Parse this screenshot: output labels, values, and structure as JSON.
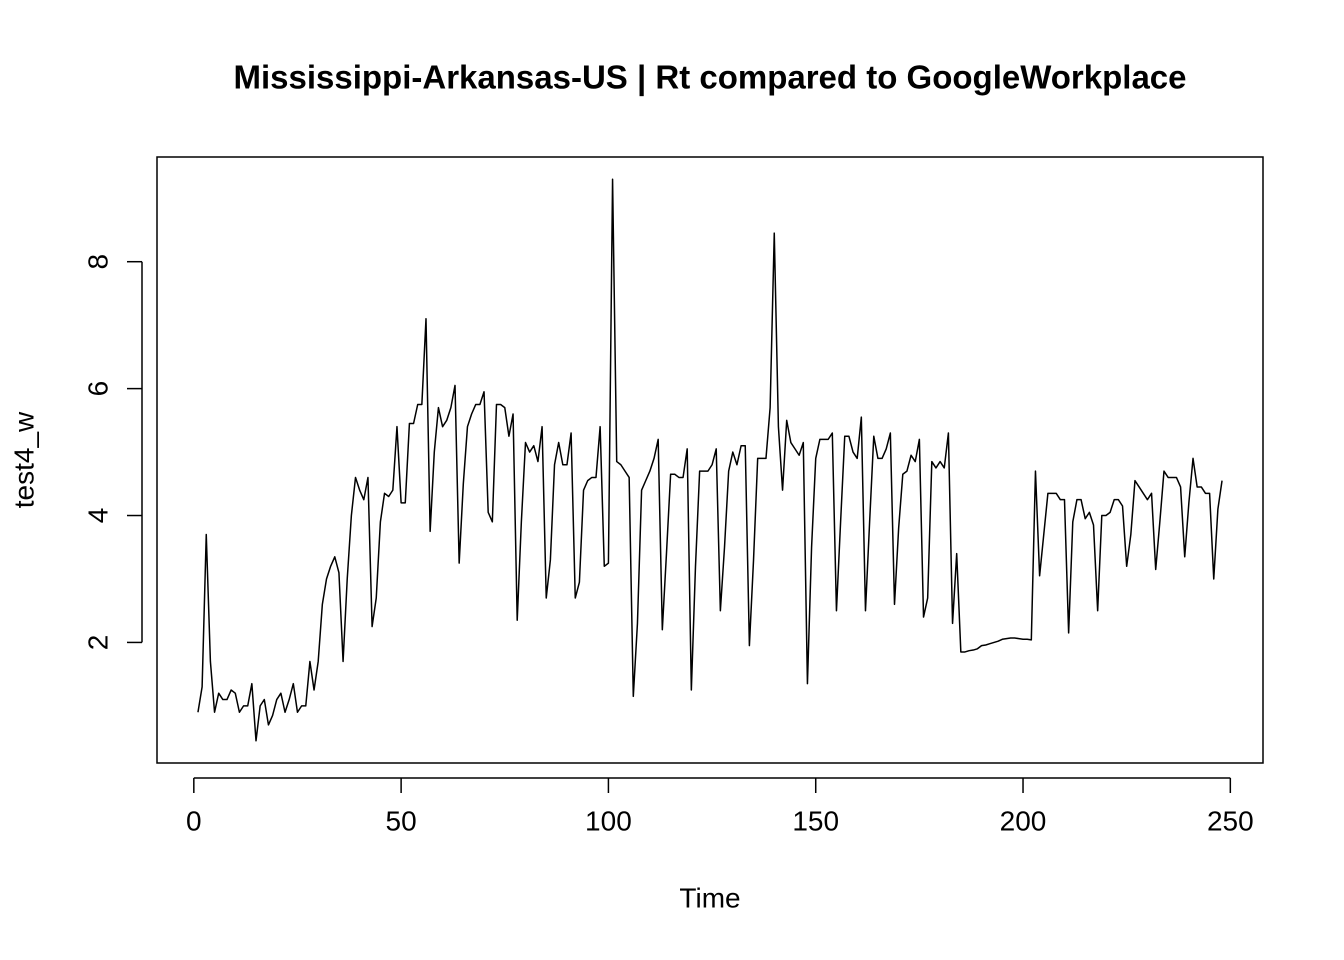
{
  "chart_data": {
    "type": "line",
    "title": "Mississippi-Arkansas-US | Rt compared to GoogleWorkplace",
    "x_label": "Time",
    "y_label": "test4_w",
    "x": [
      1,
      2,
      3,
      4,
      5,
      6,
      7,
      8,
      9,
      10,
      11,
      12,
      13,
      14,
      15,
      16,
      17,
      18,
      19,
      20,
      21,
      22,
      23,
      24,
      25,
      26,
      27,
      28,
      29,
      30,
      31,
      32,
      33,
      34,
      35,
      36,
      37,
      38,
      39,
      40,
      41,
      42,
      43,
      44,
      45,
      46,
      47,
      48,
      49,
      50,
      51,
      52,
      53,
      54,
      55,
      56,
      57,
      58,
      59,
      60,
      61,
      62,
      63,
      64,
      65,
      66,
      67,
      68,
      69,
      70,
      71,
      72,
      73,
      74,
      75,
      76,
      77,
      78,
      79,
      80,
      81,
      82,
      83,
      84,
      85,
      86,
      87,
      88,
      89,
      90,
      91,
      92,
      93,
      94,
      95,
      96,
      97,
      98,
      99,
      100,
      101,
      102,
      103,
      104,
      105,
      106,
      107,
      108,
      109,
      110,
      111,
      112,
      113,
      114,
      115,
      116,
      117,
      118,
      119,
      120,
      121,
      122,
      123,
      124,
      125,
      126,
      127,
      128,
      129,
      130,
      131,
      132,
      133,
      134,
      135,
      136,
      137,
      138,
      139,
      140,
      141,
      142,
      143,
      144,
      145,
      146,
      147,
      148,
      149,
      150,
      151,
      152,
      153,
      154,
      155,
      156,
      157,
      158,
      159,
      160,
      161,
      162,
      163,
      164,
      165,
      166,
      167,
      168,
      169,
      170,
      171,
      172,
      173,
      174,
      175,
      176,
      177,
      178,
      179,
      180,
      181,
      182,
      183,
      184,
      185,
      186,
      187,
      188,
      189,
      190,
      191,
      192,
      193,
      194,
      195,
      196,
      197,
      198,
      199,
      200,
      201,
      202,
      203,
      204,
      205,
      206,
      207,
      208,
      209,
      210,
      211,
      212,
      213,
      214,
      215,
      216,
      217,
      218,
      219,
      220,
      221,
      222,
      223,
      224,
      225,
      226,
      227,
      228,
      229,
      230,
      231,
      232,
      233,
      234,
      235,
      236,
      237,
      238,
      239,
      240,
      241,
      242,
      243,
      244,
      245,
      246,
      247,
      248
    ],
    "series": [
      {
        "name": "test4_w",
        "color": "#000000",
        "values": [
          0.9,
          1.3,
          3.7,
          1.7,
          0.9,
          1.2,
          1.1,
          1.1,
          1.25,
          1.2,
          0.9,
          1.0,
          1.0,
          1.35,
          0.45,
          1.0,
          1.1,
          0.7,
          0.85,
          1.1,
          1.2,
          0.9,
          1.1,
          1.35,
          0.9,
          1.0,
          1.0,
          1.7,
          1.25,
          1.7,
          2.6,
          3.0,
          3.2,
          3.35,
          3.1,
          1.7,
          3.0,
          4.0,
          4.6,
          4.4,
          4.25,
          4.6,
          2.25,
          2.7,
          3.9,
          4.35,
          4.3,
          4.4,
          5.4,
          4.2,
          4.2,
          5.45,
          5.45,
          5.75,
          5.75,
          7.1,
          3.75,
          5.0,
          5.7,
          5.4,
          5.5,
          5.7,
          6.05,
          3.25,
          4.5,
          5.4,
          5.6,
          5.75,
          5.75,
          5.95,
          4.05,
          3.9,
          5.75,
          5.75,
          5.7,
          5.25,
          5.6,
          2.35,
          3.9,
          5.15,
          5.0,
          5.1,
          4.85,
          5.4,
          2.7,
          3.3,
          4.8,
          5.15,
          4.8,
          4.8,
          5.3,
          2.7,
          2.95,
          4.4,
          4.55,
          4.6,
          4.6,
          5.4,
          3.2,
          3.25,
          9.3,
          4.85,
          4.8,
          4.7,
          4.6,
          1.15,
          2.3,
          4.4,
          4.55,
          4.7,
          4.9,
          5.2,
          2.2,
          3.4,
          4.65,
          4.65,
          4.6,
          4.6,
          5.05,
          1.25,
          3.2,
          4.7,
          4.7,
          4.7,
          4.8,
          5.05,
          2.5,
          3.5,
          4.7,
          5.0,
          4.8,
          5.1,
          5.1,
          1.95,
          3.3,
          4.9,
          4.9,
          4.9,
          5.7,
          8.45,
          5.4,
          4.4,
          5.5,
          5.15,
          5.05,
          4.95,
          5.15,
          1.35,
          3.5,
          4.9,
          5.2,
          5.2,
          5.2,
          5.3,
          2.5,
          3.9,
          5.25,
          5.25,
          5.0,
          4.9,
          5.55,
          2.5,
          3.9,
          5.25,
          4.9,
          4.9,
          5.05,
          5.3,
          2.6,
          3.8,
          4.65,
          4.7,
          4.95,
          4.85,
          5.2,
          2.4,
          2.7,
          4.85,
          4.75,
          4.85,
          4.75,
          5.3,
          2.3,
          3.4,
          1.85,
          1.85,
          1.87,
          1.88,
          1.9,
          1.95,
          1.96,
          1.98,
          2.0,
          2.02,
          2.05,
          2.06,
          2.07,
          2.07,
          2.06,
          2.05,
          2.05,
          2.04,
          4.7,
          3.05,
          3.7,
          4.35,
          4.35,
          4.35,
          4.25,
          4.25,
          2.15,
          3.9,
          4.25,
          4.25,
          3.95,
          4.05,
          3.85,
          2.5,
          4.0,
          4.0,
          4.05,
          4.25,
          4.25,
          4.15,
          3.2,
          3.7,
          4.55,
          4.45,
          4.35,
          4.25,
          4.35,
          3.15,
          3.9,
          4.7,
          4.6,
          4.6,
          4.6,
          4.45,
          3.35,
          4.2,
          4.9,
          4.45,
          4.45,
          4.35,
          4.35,
          3.0,
          4.1,
          4.55
        ]
      }
    ],
    "xlim": [
      -8.88,
      257.88
    ],
    "xticks": [
      0,
      50,
      100,
      150,
      200,
      250
    ],
    "ylim": [
      0.1,
      9.65
    ],
    "yticks": [
      2,
      4,
      6,
      8
    ],
    "grid": false,
    "legend": false
  }
}
